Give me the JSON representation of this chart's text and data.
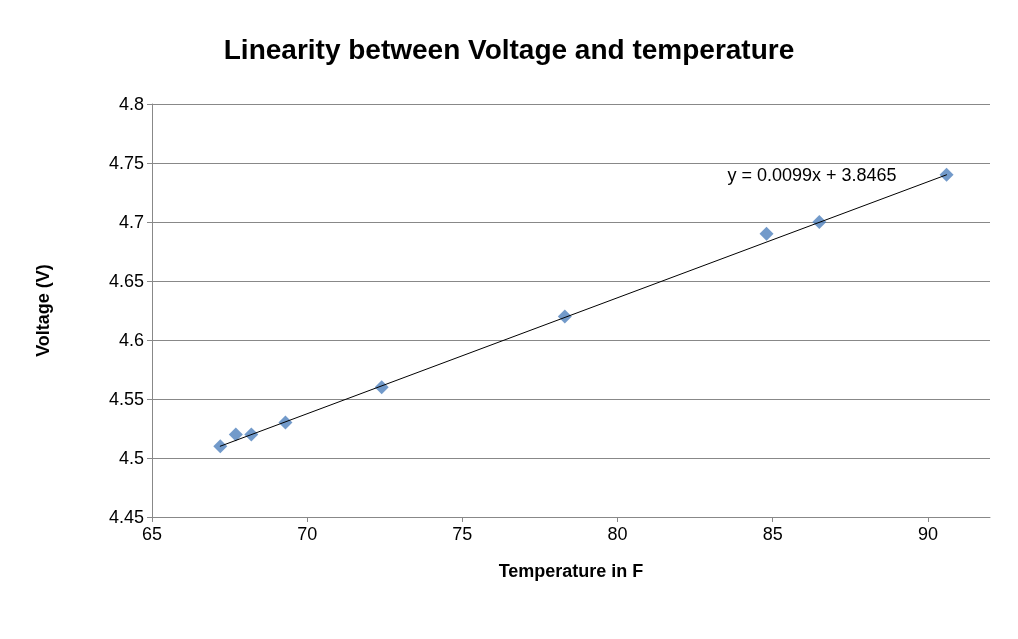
{
  "chart_data": {
    "type": "scatter",
    "title": "Linearity between Voltage and temperature",
    "xlabel": "Temperature in F",
    "ylabel": "Voltage (V)",
    "series": [
      {
        "color": "#4f81bd",
        "marker": "diamond",
        "x": [
          67.2,
          67.7,
          68.2,
          69.3,
          72.4,
          78.3,
          84.8,
          86.5,
          90.6
        ],
        "values": [
          4.51,
          4.52,
          4.52,
          4.53,
          4.56,
          4.62,
          4.69,
          4.7,
          4.74
        ]
      },
      {
        "type": "line",
        "color": "#000000",
        "marker": "none",
        "x": [
          67.2,
          90.6
        ],
        "values": [
          4.51,
          4.74
        ]
      }
    ],
    "annotations": [
      "y = 0.0099x + 3.8465"
    ],
    "xlim": [
      65,
      92
    ],
    "xticks": [
      65,
      70,
      75,
      80,
      85,
      90
    ],
    "ylim": [
      4.45,
      4.8
    ],
    "yticks": [
      4.45,
      4.5,
      4.55,
      4.6,
      4.65,
      4.7,
      4.75,
      4.8
    ],
    "grid": "y"
  }
}
